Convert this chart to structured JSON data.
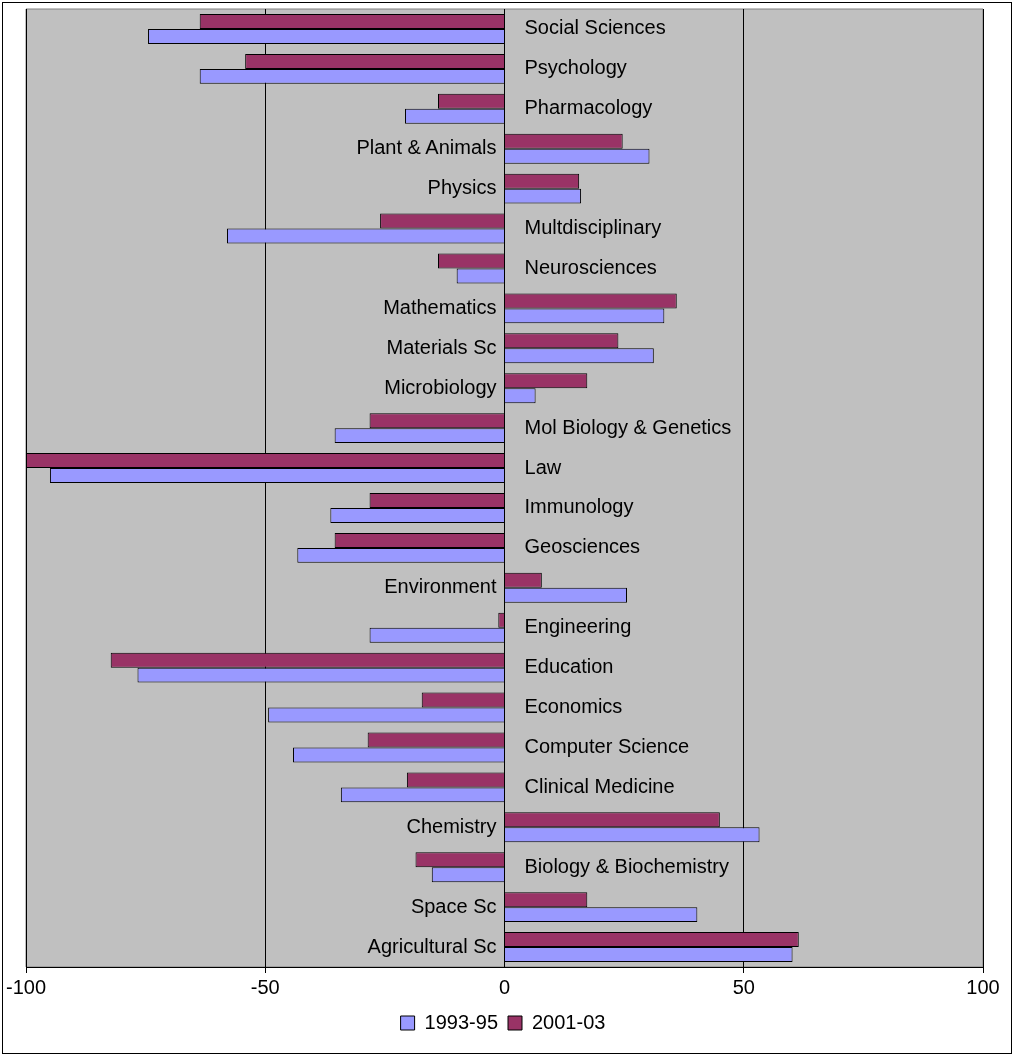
{
  "chart_data": {
    "type": "bar",
    "orientation": "horizontal",
    "categories": [
      "Social Sciences",
      "Psychology",
      "Pharmacology",
      "Plant & Animals",
      "Physics",
      "Multdisciplinary",
      "Neurosciences",
      "Mathematics",
      "Materials Sc",
      "Microbiology",
      "Mol Biology & Genetics",
      "Law",
      "Immunology",
      "Geosciences",
      "Environment",
      "Engineering",
      "Education",
      "Economics",
      "Computer Science",
      "Clinical Medicine",
      "Chemistry",
      "Biology & Biochemistry",
      "Space Sc",
      "Agricultural Sc"
    ],
    "series": [
      {
        "name": "1993-95",
        "color": "#9999ff",
        "values": [
          -74.5,
          -63.7,
          -20.8,
          30.3,
          16,
          -58,
          -10,
          33.4,
          31.2,
          6.5,
          -35.5,
          -95,
          -36.4,
          -43.3,
          25.6,
          -28.2,
          -76.7,
          -49.4,
          -44.2,
          -34.2,
          53.3,
          -15.2,
          40.3,
          60.2
        ]
      },
      {
        "name": "2001-03",
        "color": "#993366",
        "values": [
          -63.7,
          -54.2,
          -13.9,
          24.7,
          15.6,
          -26,
          -13.9,
          36,
          23.8,
          17.3,
          -28.2,
          -100,
          -28.2,
          -35.5,
          7.8,
          -1.3,
          -82.3,
          -17.3,
          -28.6,
          -20.4,
          45,
          -18.6,
          17.3,
          61.5
        ]
      }
    ],
    "xlim": [
      -100,
      100
    ],
    "xticks": [
      -100,
      -50,
      0,
      50,
      100
    ],
    "grid": "x",
    "legend": "bottom"
  }
}
